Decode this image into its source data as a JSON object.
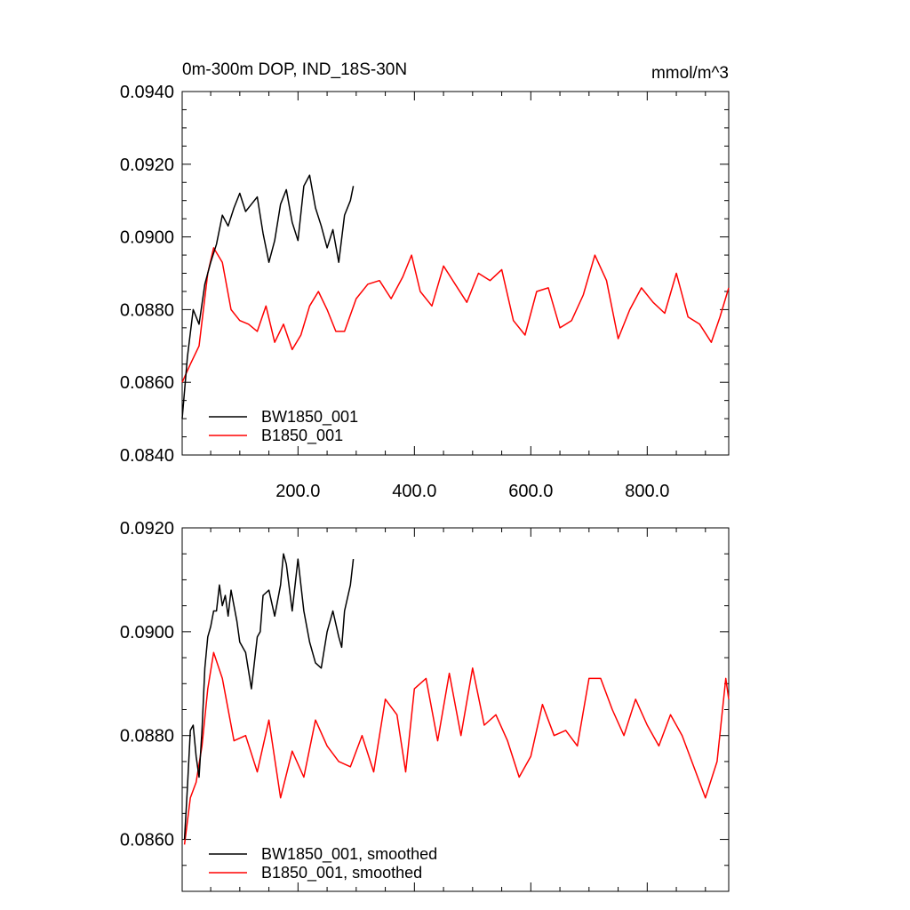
{
  "colors": {
    "BW": "#000000",
    "B": "#ff0000"
  },
  "chart_data": [
    {
      "type": "line",
      "title": "0m-300m DOP, IND_18S-30N",
      "units": "mmol/m^3",
      "xlim": [
        1,
        940
      ],
      "ylim": [
        0.084,
        0.094
      ],
      "x_ticks": [
        "200.0",
        "400.0",
        "600.0",
        "800.0"
      ],
      "y_ticks": [
        "0.0840",
        "0.0860",
        "0.0880",
        "0.0900",
        "0.0920",
        "0.0940"
      ],
      "legend_position": "bottom-left",
      "series": [
        {
          "name": "BW1850_001",
          "color": "#000000",
          "x": [
            1,
            10,
            20,
            30,
            40,
            50,
            60,
            70,
            80,
            90,
            100,
            110,
            120,
            130,
            140,
            150,
            160,
            170,
            180,
            190,
            200,
            210,
            220,
            230,
            240,
            250,
            260,
            270,
            280,
            290,
            295
          ],
          "y": [
            0.085,
            0.0867,
            0.088,
            0.0876,
            0.0887,
            0.0893,
            0.0898,
            0.0906,
            0.0903,
            0.0908,
            0.0912,
            0.0907,
            0.0909,
            0.0911,
            0.0901,
            0.0893,
            0.0899,
            0.0909,
            0.0913,
            0.0904,
            0.0899,
            0.0914,
            0.0917,
            0.0908,
            0.0903,
            0.0897,
            0.0902,
            0.0893,
            0.0906,
            0.091,
            0.0914
          ]
        },
        {
          "name": "B1850_001",
          "color": "#ff0000",
          "x": [
            1,
            15,
            30,
            45,
            55,
            70,
            85,
            100,
            115,
            130,
            145,
            160,
            175,
            190,
            205,
            220,
            235,
            250,
            265,
            280,
            300,
            320,
            340,
            360,
            380,
            395,
            410,
            430,
            450,
            470,
            490,
            510,
            530,
            550,
            570,
            590,
            610,
            630,
            650,
            670,
            690,
            710,
            730,
            750,
            770,
            790,
            810,
            830,
            850,
            870,
            890,
            910,
            925,
            940
          ],
          "y": [
            0.086,
            0.0865,
            0.087,
            0.089,
            0.0897,
            0.0893,
            0.088,
            0.0877,
            0.0876,
            0.0874,
            0.0881,
            0.0871,
            0.0876,
            0.0869,
            0.0873,
            0.0881,
            0.0885,
            0.088,
            0.0874,
            0.0874,
            0.0883,
            0.0887,
            0.0888,
            0.0883,
            0.0889,
            0.0895,
            0.0885,
            0.0881,
            0.0892,
            0.0887,
            0.0882,
            0.089,
            0.0888,
            0.0891,
            0.0877,
            0.0873,
            0.0885,
            0.0886,
            0.0875,
            0.0877,
            0.0884,
            0.0895,
            0.0888,
            0.0872,
            0.088,
            0.0886,
            0.0882,
            0.0879,
            0.089,
            0.0878,
            0.0876,
            0.0871,
            0.0878,
            0.0886
          ]
        }
      ]
    },
    {
      "type": "line",
      "xlim": [
        1,
        940
      ],
      "ylim": [
        0.085,
        0.092
      ],
      "y_ticks": [
        "0.0860",
        "0.0880",
        "0.0900",
        "0.0920"
      ],
      "legend_position": "bottom-left",
      "series": [
        {
          "name": "BW1850_001, smoothed",
          "color": "#000000",
          "x": [
            5,
            10,
            15,
            20,
            25,
            30,
            35,
            40,
            45,
            50,
            55,
            60,
            65,
            70,
            75,
            80,
            85,
            90,
            95,
            100,
            110,
            120,
            130,
            135,
            140,
            150,
            160,
            170,
            175,
            180,
            190,
            200,
            210,
            220,
            230,
            240,
            250,
            260,
            270,
            275,
            280,
            290,
            295
          ],
          "y": [
            0.086,
            0.087,
            0.0881,
            0.0882,
            0.0876,
            0.0872,
            0.0881,
            0.0893,
            0.0899,
            0.0901,
            0.0904,
            0.0904,
            0.0909,
            0.0905,
            0.0907,
            0.0903,
            0.0908,
            0.0905,
            0.0902,
            0.0898,
            0.0896,
            0.0889,
            0.0899,
            0.09,
            0.0907,
            0.0908,
            0.0903,
            0.0909,
            0.0915,
            0.0913,
            0.0904,
            0.0914,
            0.0904,
            0.0898,
            0.0894,
            0.0893,
            0.09,
            0.0904,
            0.0899,
            0.0897,
            0.0904,
            0.0909,
            0.0914
          ]
        },
        {
          "name": "B1850_001, smoothed",
          "color": "#ff0000",
          "x": [
            5,
            15,
            25,
            35,
            45,
            55,
            70,
            90,
            110,
            130,
            150,
            170,
            190,
            210,
            230,
            250,
            270,
            290,
            310,
            330,
            350,
            370,
            385,
            400,
            420,
            440,
            460,
            480,
            500,
            520,
            540,
            560,
            580,
            600,
            620,
            640,
            660,
            680,
            700,
            720,
            740,
            760,
            780,
            800,
            820,
            840,
            860,
            880,
            900,
            920,
            935,
            940
          ],
          "y": [
            0.0859,
            0.0868,
            0.0871,
            0.0878,
            0.0889,
            0.0896,
            0.0891,
            0.0879,
            0.088,
            0.0873,
            0.0883,
            0.0868,
            0.0877,
            0.0872,
            0.0883,
            0.0878,
            0.0875,
            0.0874,
            0.088,
            0.0873,
            0.0887,
            0.0884,
            0.0873,
            0.0889,
            0.0891,
            0.0879,
            0.0892,
            0.088,
            0.0893,
            0.0882,
            0.0884,
            0.0879,
            0.0872,
            0.0876,
            0.0886,
            0.088,
            0.0881,
            0.0878,
            0.0891,
            0.0891,
            0.0885,
            0.088,
            0.0887,
            0.0882,
            0.0878,
            0.0884,
            0.088,
            0.0874,
            0.0868,
            0.0875,
            0.0891,
            0.0887
          ]
        }
      ]
    }
  ]
}
